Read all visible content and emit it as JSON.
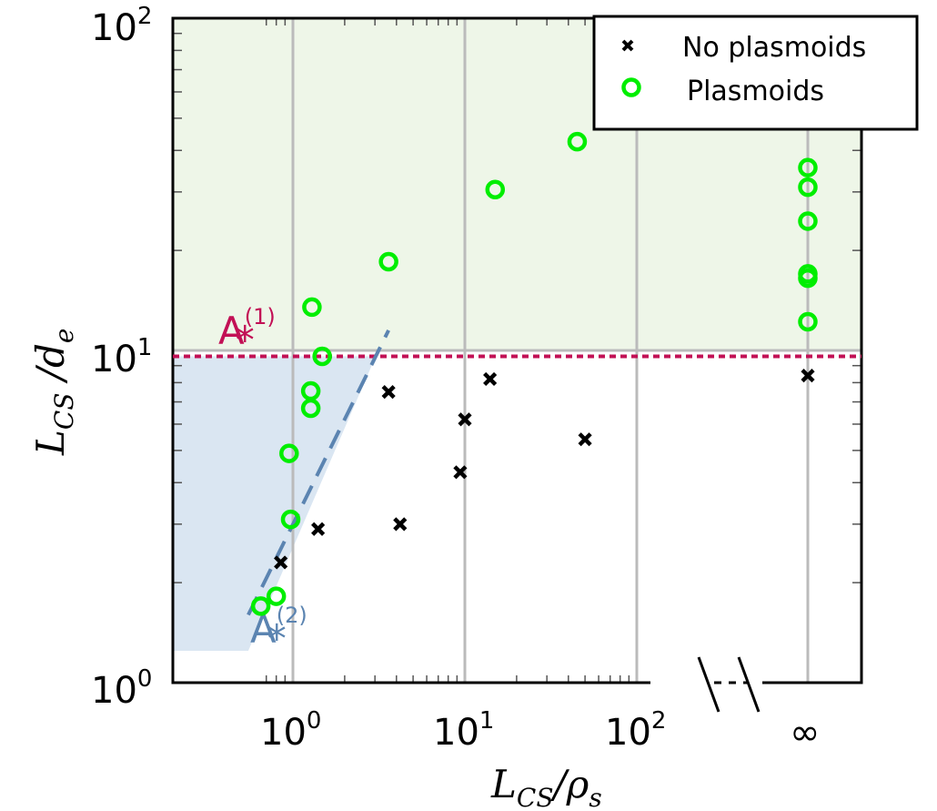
{
  "chart_data": {
    "type": "scatter",
    "xlabel": {
      "main": "L",
      "sub1": "CS",
      "slash": "/",
      "rho": "ρ",
      "sub2": "s"
    },
    "ylabel": {
      "main": "L",
      "sub1": "CS",
      "slash": " /",
      "d": "d",
      "sub2": "e"
    },
    "x_scale": "log",
    "y_scale": "log",
    "xlim": [
      0.5,
      2000
    ],
    "ylim": [
      1,
      100
    ],
    "x_ticks": [
      {
        "value": 1,
        "base": "10",
        "exp": "0"
      },
      {
        "value": 10,
        "base": "10",
        "exp": "1"
      },
      {
        "value": 100,
        "base": "10",
        "exp": "2"
      },
      {
        "value": "inf",
        "label": "∞"
      }
    ],
    "y_ticks": [
      {
        "value": 1,
        "base": "10",
        "exp": "0"
      },
      {
        "value": 10,
        "base": "10",
        "exp": "1"
      },
      {
        "value": 100,
        "base": "10",
        "exp": "2"
      }
    ],
    "grid": true,
    "legend": {
      "position": "top-right",
      "entries": [
        {
          "label": "No plasmoids",
          "marker": "x",
          "color": "#000000"
        },
        {
          "label": "Plasmoids",
          "marker": "o",
          "color": "#00ee00"
        }
      ]
    },
    "series": [
      {
        "name": "No plasmoids",
        "marker": "x",
        "color": "#000000",
        "points": [
          {
            "x": 0.85,
            "y": 2.3
          },
          {
            "x": 1.4,
            "y": 2.9
          },
          {
            "x": 3.6,
            "y": 7.5
          },
          {
            "x": 4.2,
            "y": 3.0
          },
          {
            "x": 9.4,
            "y": 4.3
          },
          {
            "x": 10.0,
            "y": 6.2
          },
          {
            "x": 14.0,
            "y": 8.2
          },
          {
            "x": 50.0,
            "y": 5.4
          },
          {
            "x": "inf",
            "y": 8.4
          }
        ]
      },
      {
        "name": "Plasmoids",
        "marker": "o",
        "color": "#00ee00",
        "points": [
          {
            "x": 0.65,
            "y": 1.7
          },
          {
            "x": 0.8,
            "y": 1.82
          },
          {
            "x": 0.95,
            "y": 4.9
          },
          {
            "x": 0.97,
            "y": 3.1
          },
          {
            "x": 1.27,
            "y": 7.55
          },
          {
            "x": 1.27,
            "y": 6.7
          },
          {
            "x": 1.29,
            "y": 13.5
          },
          {
            "x": 1.48,
            "y": 9.6
          },
          {
            "x": 3.6,
            "y": 18.5
          },
          {
            "x": 15.0,
            "y": 30.5
          },
          {
            "x": 45.0,
            "y": 42.5
          },
          {
            "x": "inf",
            "y": 35.5
          },
          {
            "x": "inf",
            "y": 31.0
          },
          {
            "x": "inf",
            "y": 24.5
          },
          {
            "x": "inf",
            "y": 17.0
          },
          {
            "x": "inf",
            "y": 16.5
          },
          {
            "x": "inf",
            "y": 12.2
          }
        ]
      }
    ],
    "annotations": [
      {
        "label": "A",
        "sup": "(1)",
        "sub": "*",
        "color": "#c21055",
        "line": {
          "style": "dotted",
          "y": 9.6
        }
      },
      {
        "label": "A",
        "sup": "(2)",
        "sub": "*",
        "color": "#5b84b1",
        "line": {
          "style": "dashed",
          "from": {
            "x": 0.55,
            "y": 1.6
          },
          "to": {
            "x": 3.6,
            "y": 11.5
          }
        }
      }
    ],
    "regions": [
      {
        "name": "plasmoid-region",
        "color": "#eef6e8",
        "y_from": 10,
        "y_to": 100
      },
      {
        "name": "A2-region",
        "color": "#dae6f2"
      }
    ],
    "colors": {
      "green_marker": "#00ee00",
      "a1": "#c21055",
      "a2": "#5b84b1",
      "grid": "#bbbbbb",
      "green_fill": "#eef6e8",
      "blue_fill": "#dae6f2"
    }
  }
}
